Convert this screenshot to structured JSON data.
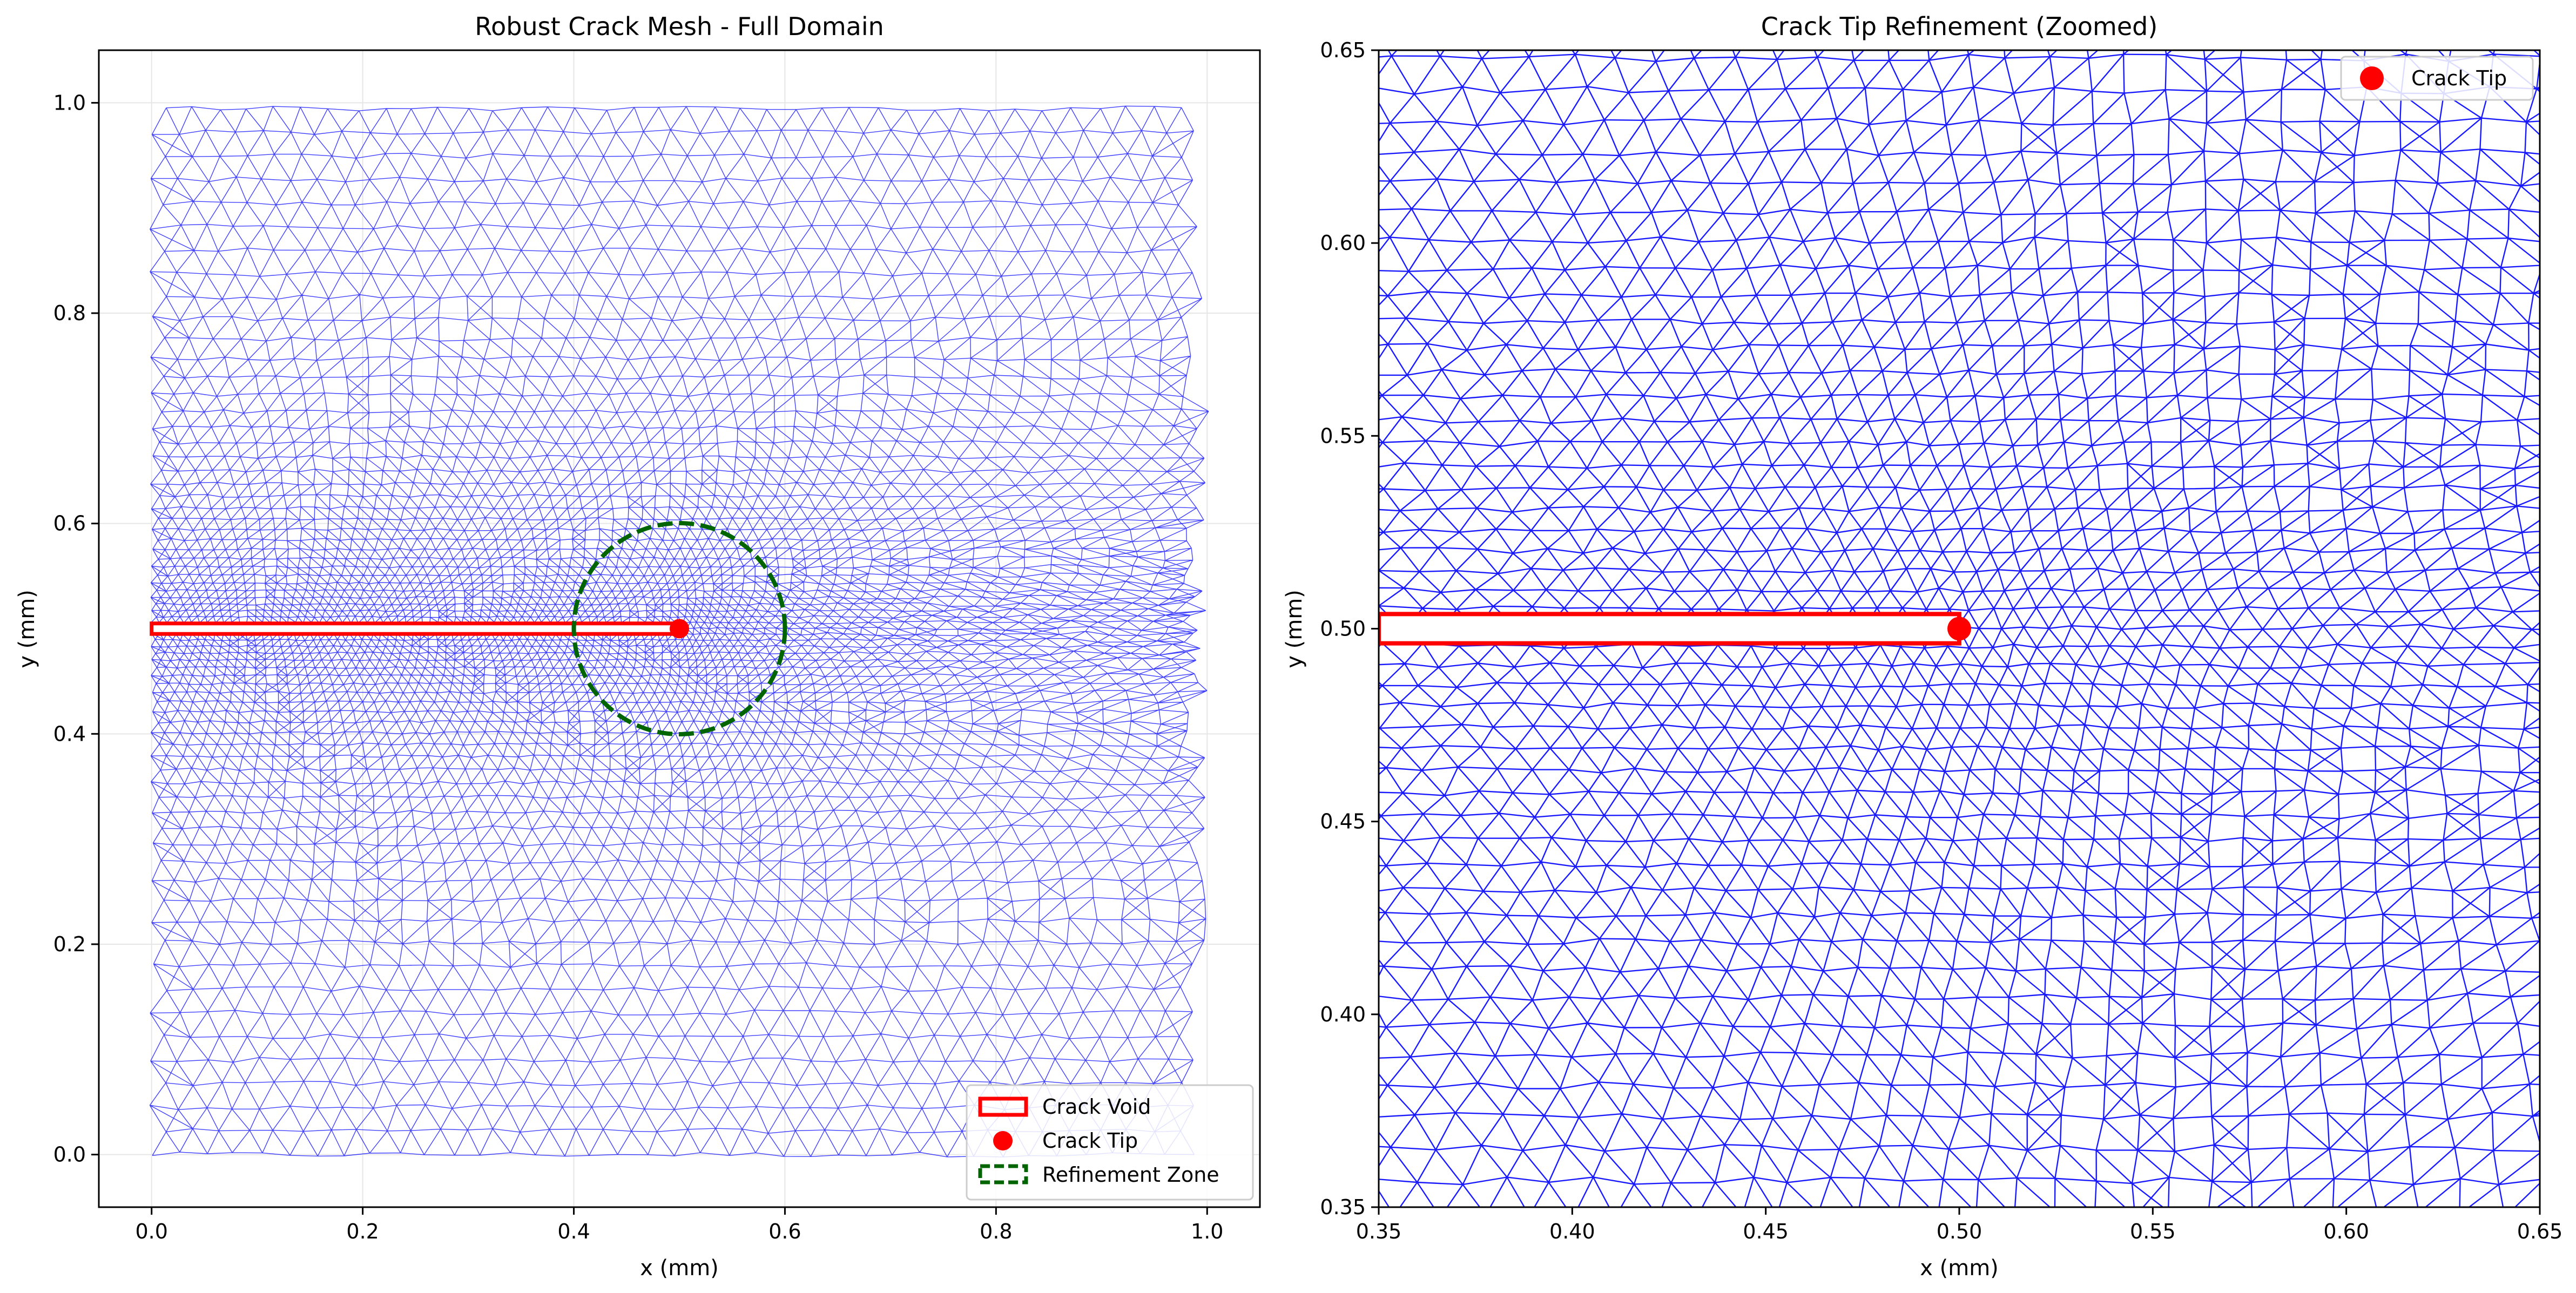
{
  "chart_data": [
    {
      "type": "mesh",
      "title": "Robust Crack Mesh - Full Domain",
      "xlabel": "x (mm)",
      "ylabel": "y (mm)",
      "xlim": [
        -0.05,
        1.05
      ],
      "ylim": [
        -0.05,
        1.05
      ],
      "xticks": [
        "0.0",
        "0.2",
        "0.4",
        "0.6",
        "0.8",
        "1.0"
      ],
      "yticks": [
        "0.0",
        "0.2",
        "0.4",
        "0.6",
        "0.8",
        "1.0"
      ],
      "domain": {
        "x": [
          0.0,
          1.0
        ],
        "y": [
          0.0,
          1.0
        ]
      },
      "mesh_color": "#0000ff",
      "crack_void": {
        "x": [
          0.0,
          0.5
        ],
        "y": [
          0.495,
          0.505
        ],
        "color": "#ff0000"
      },
      "crack_tip": {
        "x": 0.5,
        "y": 0.5,
        "color": "#ff0000"
      },
      "refinement_zone": {
        "center": [
          0.5,
          0.5
        ],
        "radius": 0.1,
        "color": "#006400"
      },
      "grid": true,
      "legend": {
        "position": "lower-right",
        "entries": [
          {
            "label": "Crack Void",
            "marker": "rect",
            "color": "#ff0000"
          },
          {
            "label": "Crack Tip",
            "marker": "dot",
            "color": "#ff0000"
          },
          {
            "label": "Refinement Zone",
            "marker": "dashed-rect",
            "color": "#006400"
          }
        ]
      }
    },
    {
      "type": "mesh",
      "title": "Crack Tip Refinement (Zoomed)",
      "xlabel": "x (mm)",
      "ylabel": "y (mm)",
      "xlim": [
        0.35,
        0.65
      ],
      "ylim": [
        0.35,
        0.65
      ],
      "xticks": [
        "0.35",
        "0.40",
        "0.45",
        "0.50",
        "0.55",
        "0.60",
        "0.65"
      ],
      "yticks": [
        "0.35",
        "0.40",
        "0.45",
        "0.50",
        "0.55",
        "0.60",
        "0.65"
      ],
      "mesh_color": "#0000ff",
      "crack_void": {
        "x": [
          0.35,
          0.5
        ],
        "y": [
          0.4962,
          0.5038
        ],
        "color": "#ff0000"
      },
      "crack_tip": {
        "x": 0.5,
        "y": 0.5,
        "color": "#ff0000"
      },
      "grid": false,
      "legend": {
        "position": "upper-right",
        "entries": [
          {
            "label": "Crack Tip",
            "marker": "dot",
            "color": "#ff0000"
          }
        ]
      }
    }
  ]
}
